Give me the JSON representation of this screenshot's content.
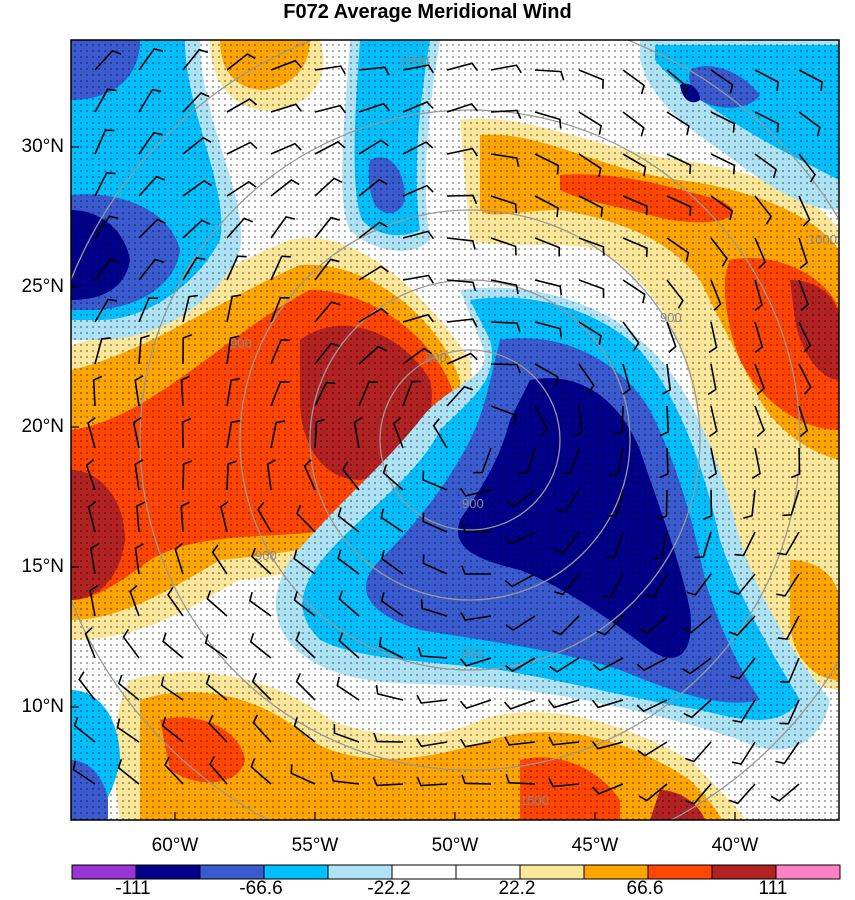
{
  "title": "F072 Average Meridional Wind",
  "lat_labels": [
    "30°N",
    "25°N",
    "20°N",
    "15°N",
    "10°N"
  ],
  "lon_labels": [
    "60°W",
    "55°W",
    "50°W",
    "45°W",
    "40°W"
  ],
  "colorbar": {
    "colors": [
      "#9b34d4",
      "#00008b",
      "#3a5bd0",
      "#00bfff",
      "#aee3f5",
      "#ffffff",
      "#ffffff",
      "#fbe79a",
      "#ffa500",
      "#ff4500",
      "#b22222",
      "#ff7fc4"
    ],
    "labels": [
      "-111",
      "-66.6",
      "-22.2",
      "22.2",
      "66.6",
      "111"
    ]
  },
  "contour_labels": [
    "1500",
    "900",
    "800",
    "900",
    "900",
    "900",
    "900",
    "1000",
    "1500"
  ],
  "palette": {
    "deep_blue": "#00008b",
    "blue": "#3a5bd0",
    "cyan": "#00bfff",
    "light_blue": "#aee3f5",
    "yellow": "#fbe79a",
    "orange": "#ffa500",
    "red": "#ff4500",
    "dark_red": "#b22222"
  }
}
